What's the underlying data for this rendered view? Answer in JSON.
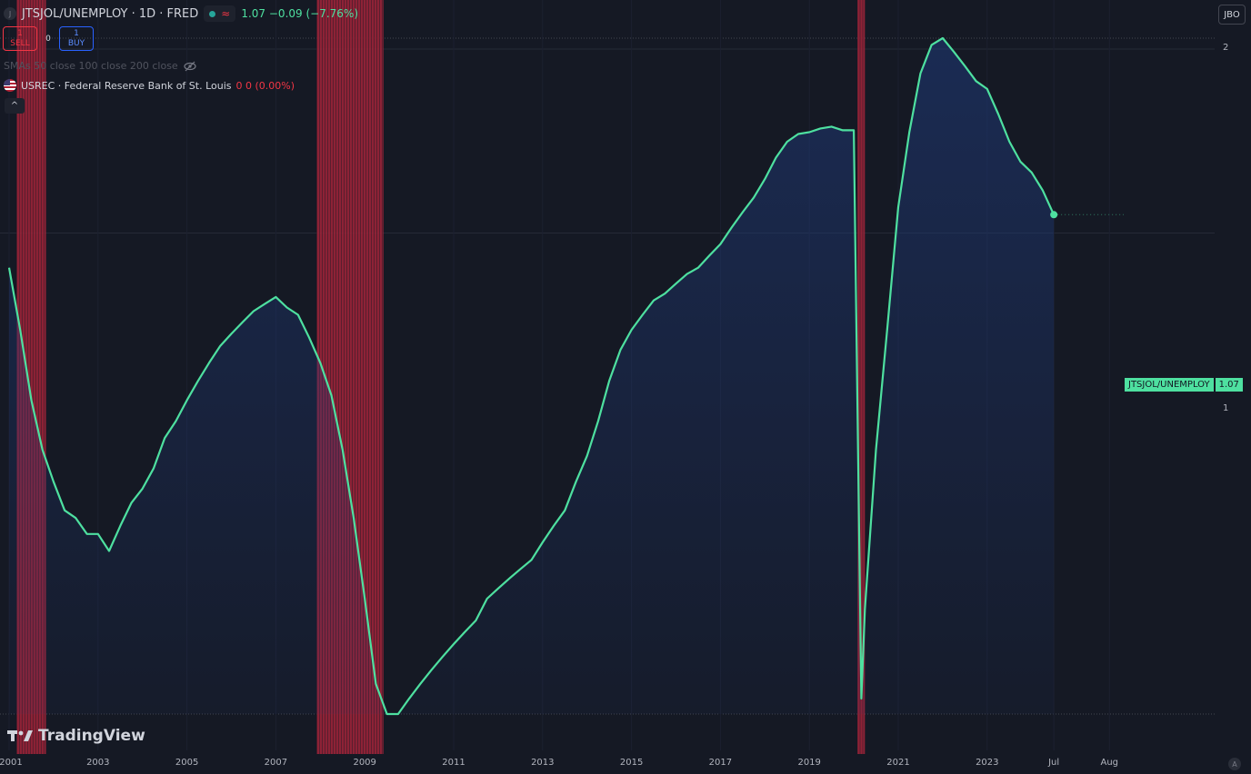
{
  "header": {
    "symbol_icon": "J",
    "title": "JTSJOL/UNEMPLOY · 1D · FRED",
    "status_icon": "market-status-icon",
    "wave_icon": "≈",
    "quote": "1.07 −0.09 (−7.76%)"
  },
  "trade": {
    "sell_count": "1",
    "sell_label": "SELL",
    "spread": "0",
    "buy_count": "1",
    "buy_label": "BUY"
  },
  "indicators": {
    "sma_label": "SMAs 50 close 100 close 200 close",
    "usrec_label": "USREC · Federal Reserve Bank of St. Louis",
    "usrec_values": "0  0 (0.00%)"
  },
  "collapse_icon": "^",
  "corner_button": "JBO",
  "price_tag": {
    "name": "JTSJOL/UNEMPLOY",
    "value": "1.07"
  },
  "watermark": "TradingView",
  "colors": {
    "line": "#4ee0a0",
    "recession": "#a3253a",
    "background": "#151924"
  },
  "chart_data": {
    "type": "area",
    "series": [
      {
        "x": [
          2001.0,
          2001.25,
          2001.5,
          2001.75,
          2002.0,
          2002.25,
          2002.5,
          2002.75,
          2003.0,
          2003.25,
          2003.5,
          2003.75,
          2004.0,
          2004.25,
          2004.5,
          2004.75,
          2005.0,
          2005.25,
          2005.5,
          2005.75,
          2006.0,
          2006.25,
          2006.5,
          2006.75,
          2007.0,
          2007.25,
          2007.5,
          2007.75,
          2008.0,
          2008.25,
          2008.5,
          2008.75,
          2009.0,
          2009.25,
          2009.5,
          2009.75,
          2010.0,
          2010.25,
          2010.5,
          2010.75,
          2011.0,
          2011.25,
          2011.5,
          2011.75,
          2012.0,
          2012.25,
          2012.5,
          2012.75,
          2013.0,
          2013.25,
          2013.5,
          2013.75,
          2014.0,
          2014.25,
          2014.5,
          2014.75,
          2015.0,
          2015.25,
          2015.5,
          2015.75,
          2016.0,
          2016.25,
          2016.5,
          2016.75,
          2017.0,
          2017.25,
          2017.5,
          2017.75,
          2018.0,
          2018.25,
          2018.5,
          2018.75,
          2019.0,
          2019.25,
          2019.5,
          2019.75,
          2020.0,
          2020.17,
          2020.25,
          2020.5,
          2020.75,
          2021.0,
          2021.25,
          2021.5,
          2021.75,
          2022.0,
          2022.25,
          2022.5,
          2022.75,
          2023.0,
          2023.25,
          2023.5,
          2023.75,
          2024.0,
          2024.25,
          2024.5
        ],
        "y": [
          0.88,
          0.7,
          0.54,
          0.45,
          0.4,
          0.36,
          0.35,
          0.33,
          0.33,
          0.31,
          0.34,
          0.37,
          0.39,
          0.42,
          0.47,
          0.5,
          0.54,
          0.58,
          0.62,
          0.66,
          0.69,
          0.72,
          0.75,
          0.77,
          0.79,
          0.76,
          0.74,
          0.68,
          0.62,
          0.55,
          0.45,
          0.35,
          0.26,
          0.19,
          0.17,
          0.17,
          0.18,
          0.19,
          0.2,
          0.21,
          0.22,
          0.23,
          0.24,
          0.26,
          0.27,
          0.28,
          0.29,
          0.3,
          0.32,
          0.34,
          0.36,
          0.4,
          0.44,
          0.5,
          0.58,
          0.65,
          0.7,
          0.74,
          0.78,
          0.8,
          0.83,
          0.86,
          0.88,
          0.92,
          0.96,
          1.02,
          1.08,
          1.14,
          1.22,
          1.32,
          1.4,
          1.44,
          1.45,
          1.47,
          1.48,
          1.46,
          1.46,
          0.18,
          0.25,
          0.45,
          0.7,
          1.1,
          1.45,
          1.8,
          2.0,
          2.05,
          1.95,
          1.85,
          1.75,
          1.7,
          1.55,
          1.4,
          1.3,
          1.25,
          1.17,
          1.07
        ]
      }
    ],
    "recessions": [
      [
        2001.17,
        2001.83
      ],
      [
        2007.92,
        2009.42
      ],
      [
        2020.08,
        2020.25
      ]
    ],
    "x_ticks": [
      "2001",
      "2003",
      "2005",
      "2007",
      "2009",
      "2011",
      "2013",
      "2015",
      "2017",
      "2019",
      "2021",
      "2023",
      "Jul",
      "Aug"
    ],
    "x_tick_values": [
      2001,
      2003,
      2005,
      2007,
      2009,
      2011,
      2013,
      2015,
      2017,
      2019,
      2021,
      2023,
      2024.5,
      2025.75
    ],
    "y_ticks": [
      "1",
      "2"
    ],
    "y_tick_values": [
      1,
      2
    ],
    "xlim": [
      2001.0,
      2026.2
    ],
    "ylim": [
      0.17,
      2.05
    ],
    "y_scale": "log",
    "grid": true,
    "last_value": 1.07
  }
}
